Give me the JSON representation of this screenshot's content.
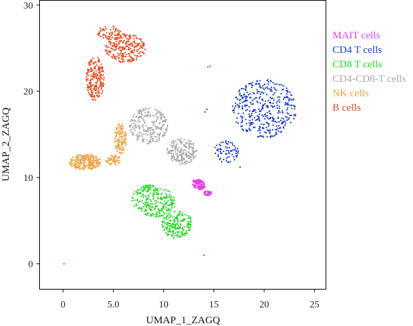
{
  "chart_data": {
    "type": "scatter",
    "xlabel": "UMAP_1_ZAGQ",
    "ylabel": "UMAP_2_ZAGQ",
    "xlim": [
      -2.3,
      26.1
    ],
    "ylim": [
      -2.9,
      30.5
    ],
    "xticks": [
      0,
      5.0,
      10,
      15,
      20,
      25
    ],
    "xtick_labels": [
      "0",
      "5.0",
      "10",
      "15",
      "20",
      "25"
    ],
    "yticks": [
      0,
      10,
      20,
      30
    ],
    "ytick_labels": [
      "0",
      "10",
      "20",
      "30"
    ],
    "grid": false,
    "legend_placement": "right",
    "series": [
      {
        "name": "MAIT cells",
        "color": "#e83ee8",
        "clusters": [
          {
            "cx": 13.5,
            "cy": 9.2,
            "rx": 0.7,
            "ry": 0.55,
            "n": 140,
            "rot": -35
          },
          {
            "cx": 14.4,
            "cy": 8.2,
            "rx": 0.4,
            "ry": 0.3,
            "n": 40,
            "rot": 0
          }
        ],
        "points": []
      },
      {
        "name": "CD4 T cells",
        "color": "#1a3fc8",
        "clusters": [
          {
            "cx": 20.0,
            "cy": 18.0,
            "rx": 3.2,
            "ry": 3.4,
            "n": 400,
            "rot": 0
          },
          {
            "cx": 16.2,
            "cy": 13.0,
            "rx": 1.3,
            "ry": 1.3,
            "n": 70,
            "rot": 0
          }
        ],
        "points": [
          [
            14.1,
            17.6
          ],
          [
            14.3,
            17.9
          ],
          [
            17.6,
            11.2
          ]
        ]
      },
      {
        "name": "CD8 T cells",
        "color": "#22d81e",
        "clusters": [
          {
            "cx": 9.0,
            "cy": 7.3,
            "rx": 2.2,
            "ry": 1.8,
            "n": 260,
            "rot": -20
          },
          {
            "cx": 11.3,
            "cy": 4.6,
            "rx": 1.6,
            "ry": 1.5,
            "n": 180,
            "rot": 0
          }
        ],
        "points": [
          [
            10.4,
            3.3
          ],
          [
            11.0,
            3.0
          ]
        ]
      },
      {
        "name": "CD4-CD8-T cells",
        "color": "#a9a9a9",
        "clusters": [
          {
            "cx": 8.5,
            "cy": 16.0,
            "rx": 1.9,
            "ry": 2.1,
            "n": 240,
            "rot": 0
          },
          {
            "cx": 11.8,
            "cy": 13.0,
            "rx": 1.5,
            "ry": 1.5,
            "n": 200,
            "rot": 0
          }
        ],
        "points": []
      },
      {
        "name": "NK cells",
        "color": "#f2a241",
        "clusters": [
          {
            "cx": 2.2,
            "cy": 11.8,
            "rx": 1.6,
            "ry": 0.9,
            "n": 240,
            "rot": 0
          },
          {
            "cx": 5.7,
            "cy": 14.5,
            "rx": 0.6,
            "ry": 1.8,
            "n": 120,
            "rot": 0
          },
          {
            "cx": 5.0,
            "cy": 12.0,
            "rx": 0.8,
            "ry": 0.6,
            "n": 60,
            "rot": 0
          }
        ],
        "points": []
      },
      {
        "name": "B cells",
        "color": "#e84a1c",
        "clusters": [
          {
            "cx": 6.2,
            "cy": 25.0,
            "rx": 2.0,
            "ry": 1.7,
            "n": 260,
            "rot": 0
          },
          {
            "cx": 3.2,
            "cy": 21.5,
            "rx": 0.9,
            "ry": 2.6,
            "n": 210,
            "rot": 0
          },
          {
            "cx": 4.6,
            "cy": 26.8,
            "rx": 1.2,
            "ry": 0.8,
            "n": 60,
            "rot": 0
          }
        ],
        "points": [
          [
            0.1,
            0.0
          ],
          [
            14.0,
            1.0
          ],
          [
            14.4,
            22.8
          ],
          [
            14.6,
            22.9
          ]
        ]
      }
    ]
  }
}
